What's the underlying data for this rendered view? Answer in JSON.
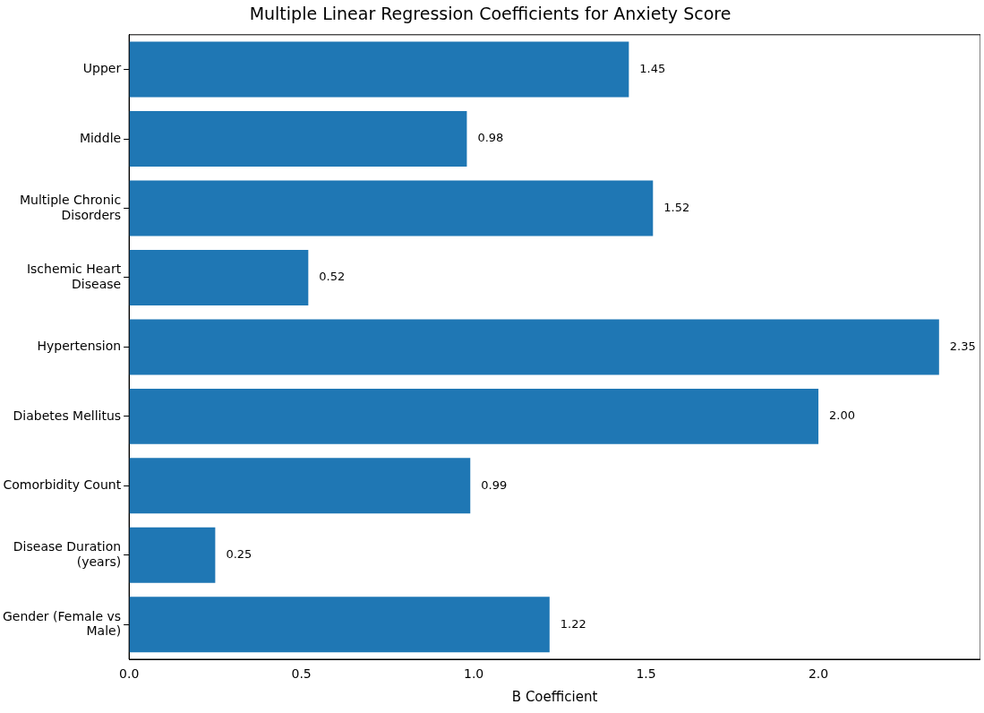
{
  "chart_data": {
    "type": "bar",
    "orientation": "horizontal",
    "title": "Multiple Linear Regression Coefficients for Anxiety Score",
    "xlabel": "B Coefficient",
    "categories": [
      "Upper",
      "Middle",
      "Multiple Chronic Disorders",
      "Ischemic Heart Disease",
      "Hypertension",
      "Diabetes Mellitus",
      "Comorbidity Count",
      "Disease Duration (years)",
      "Gender (Female vs Male)"
    ],
    "values": [
      1.45,
      0.98,
      1.52,
      0.52,
      2.35,
      2.0,
      0.99,
      0.25,
      1.22
    ],
    "value_labels": [
      "1.45",
      "0.98",
      "1.52",
      "0.52",
      "2.35",
      "2.00",
      "0.99",
      "0.25",
      "1.22"
    ],
    "color": "#1f77b4",
    "xlim": [
      0,
      2.47
    ],
    "xticks": [
      {
        "value": 0,
        "label": "0.0"
      },
      {
        "value": 0.5,
        "label": "0.5"
      },
      {
        "value": 1,
        "label": "1.0"
      },
      {
        "value": 1.5,
        "label": "1.5"
      },
      {
        "value": 2,
        "label": "2.0"
      }
    ],
    "grid": false,
    "legend": false
  }
}
